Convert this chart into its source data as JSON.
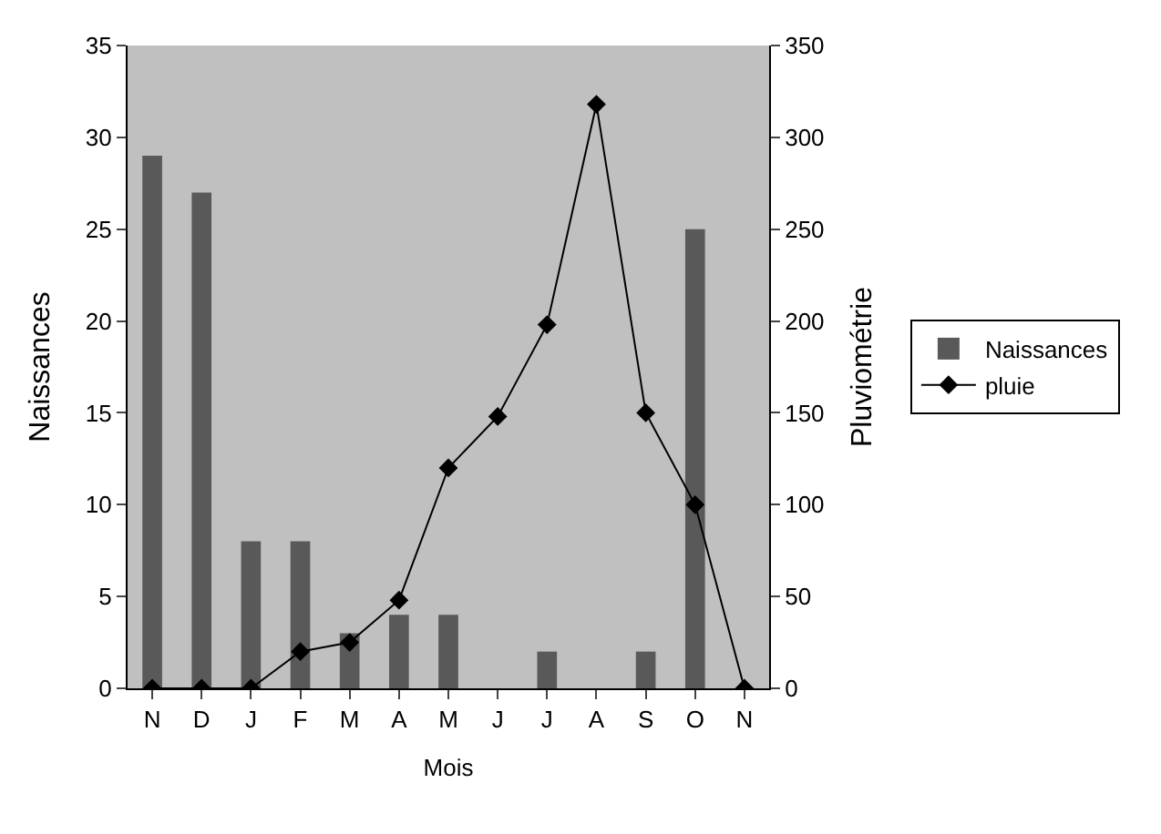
{
  "chart_data": {
    "type": "bar",
    "xlabel": "Mois",
    "ylabel": "Naissances",
    "y2label": "Pluviométrie",
    "categories": [
      "N",
      "D",
      "J",
      "F",
      "M",
      "A",
      "M",
      "J",
      "J",
      "A",
      "S",
      "O",
      "N"
    ],
    "series": [
      {
        "name": "Naissances",
        "color": "#595959",
        "values": [
          29,
          27,
          8,
          8,
          3,
          4,
          4,
          0,
          2,
          0,
          2,
          25,
          0
        ]
      },
      {
        "name": "pluie",
        "type": "line",
        "axis": "y2",
        "color": "#000000",
        "marker": "diamond",
        "values": [
          0,
          0,
          0,
          20,
          25,
          48,
          120,
          148,
          198,
          318,
          150,
          100,
          0
        ]
      }
    ],
    "ylim": [
      0,
      35
    ],
    "yticks": [
      0,
      5,
      10,
      15,
      20,
      25,
      30,
      35
    ],
    "y2lim": [
      0,
      350
    ],
    "y2ticks": [
      0,
      50,
      100,
      150,
      200,
      250,
      300,
      350
    ],
    "grid": false,
    "legend": "right"
  }
}
